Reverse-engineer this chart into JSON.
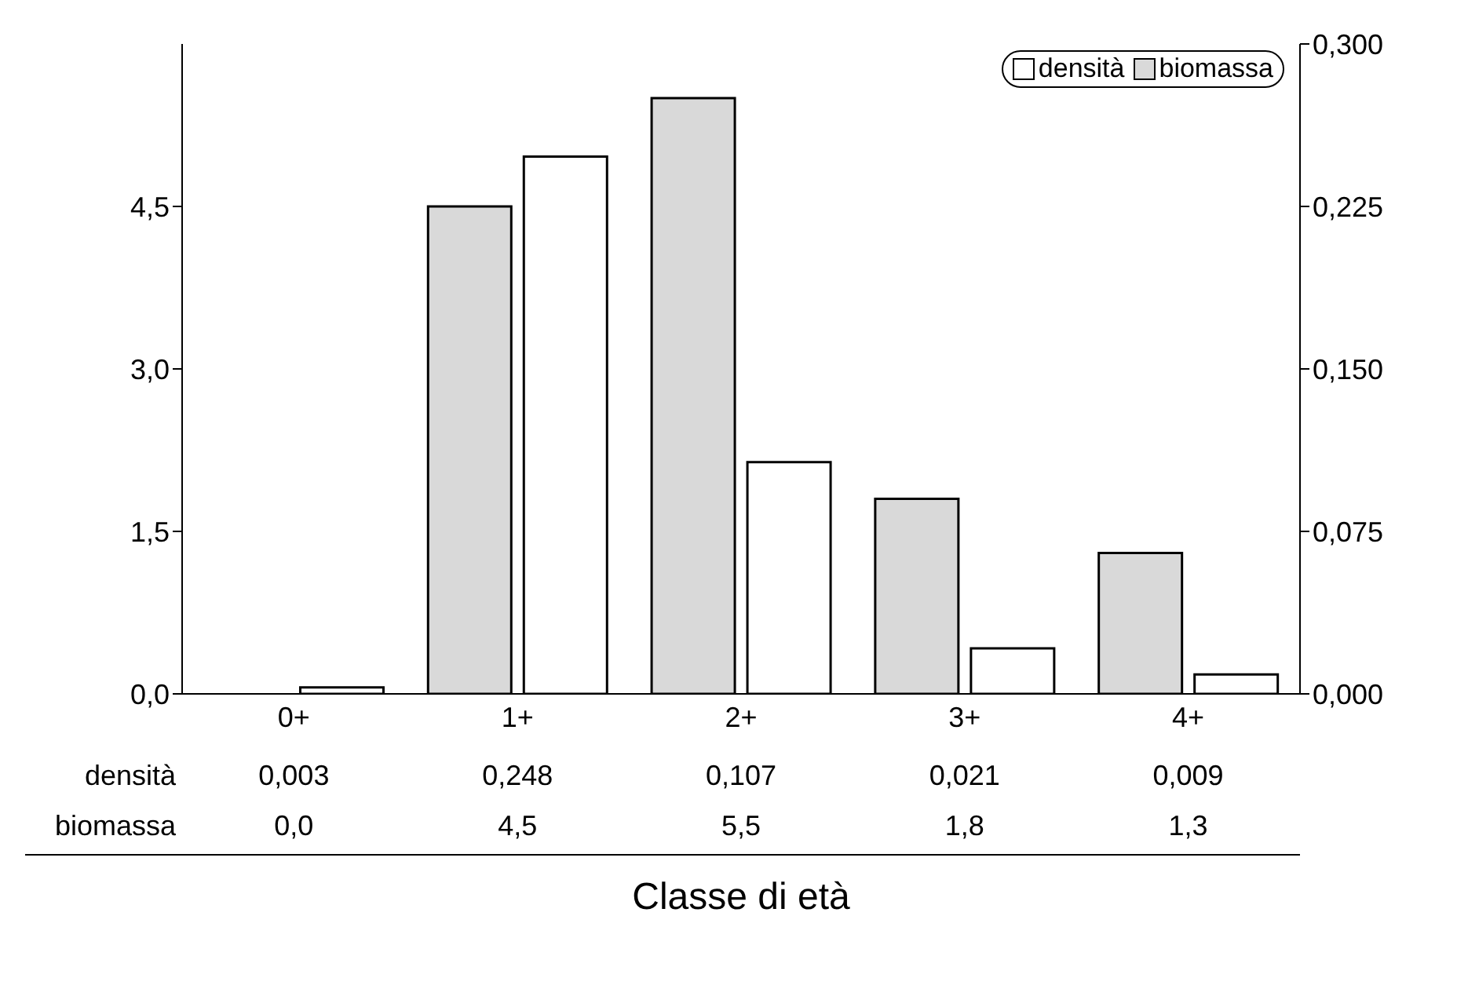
{
  "chart_data": {
    "type": "bar",
    "xlabel": "Classe di età",
    "categories": [
      "0+",
      "1+",
      "2+",
      "3+",
      "4+"
    ],
    "series": [
      {
        "name": "densità",
        "color": "#ffffff",
        "axis": "y2",
        "values": [
          0.003,
          0.248,
          0.107,
          0.021,
          0.009
        ],
        "value_labels": [
          "0,003",
          "0,248",
          "0,107",
          "0,021",
          "0,009"
        ]
      },
      {
        "name": "biomassa",
        "color": "#d9d9d9",
        "values": [
          0.0,
          4.5,
          5.5,
          1.8,
          1.3
        ],
        "value_labels": [
          "0,0",
          "4,5",
          "5,5",
          "1,8",
          "1,3"
        ]
      }
    ],
    "ylim": [
      0,
      6
    ],
    "yticks": [
      {
        "value": 0,
        "label": "0,0"
      },
      {
        "value": 1.5,
        "label": "1,5"
      },
      {
        "value": 3,
        "label": "3,0"
      },
      {
        "value": 4.5,
        "label": "4,5"
      }
    ],
    "y2lim": [
      0,
      0.3
    ],
    "y2ticks": [
      {
        "value": 0,
        "label": "0,000"
      },
      {
        "value": 0.075,
        "label": "0,075"
      },
      {
        "value": 0.15,
        "label": "0,150"
      },
      {
        "value": 0.225,
        "label": "0,225"
      },
      {
        "value": 0.3,
        "label": "0,300"
      }
    ],
    "legend": "top right",
    "grid": false,
    "data_labels": true
  }
}
